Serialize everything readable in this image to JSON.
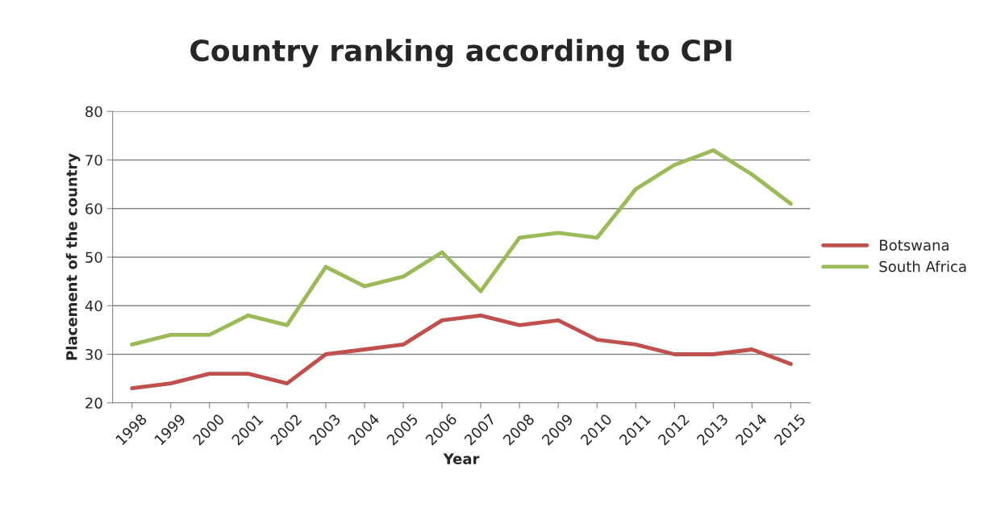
{
  "chart_data": {
    "type": "line",
    "title": "Country ranking according to CPI",
    "xlabel": "Year",
    "ylabel": "Placement of the country",
    "categories": [
      "1998",
      "1999",
      "2000",
      "2001",
      "2002",
      "2003",
      "2004",
      "2005",
      "2006",
      "2007",
      "2008",
      "2009",
      "2010",
      "2011",
      "2012",
      "2013",
      "2014",
      "2015"
    ],
    "series": [
      {
        "name": "Botswana",
        "color": "#c0504d",
        "values": [
          23,
          24,
          26,
          26,
          24,
          30,
          31,
          32,
          37,
          38,
          36,
          37,
          33,
          32,
          30,
          30,
          31,
          28
        ]
      },
      {
        "name": "South Africa",
        "color": "#9bbb59",
        "values": [
          32,
          34,
          34,
          38,
          36,
          48,
          44,
          46,
          51,
          43,
          54,
          55,
          54,
          64,
          69,
          72,
          67,
          61
        ]
      }
    ],
    "ylim": [
      20,
      80
    ],
    "yticks": [
      20,
      30,
      40,
      50,
      60,
      70,
      80
    ],
    "grid": "y",
    "legend": "right",
    "marker": "none",
    "line_style": "solid"
  }
}
